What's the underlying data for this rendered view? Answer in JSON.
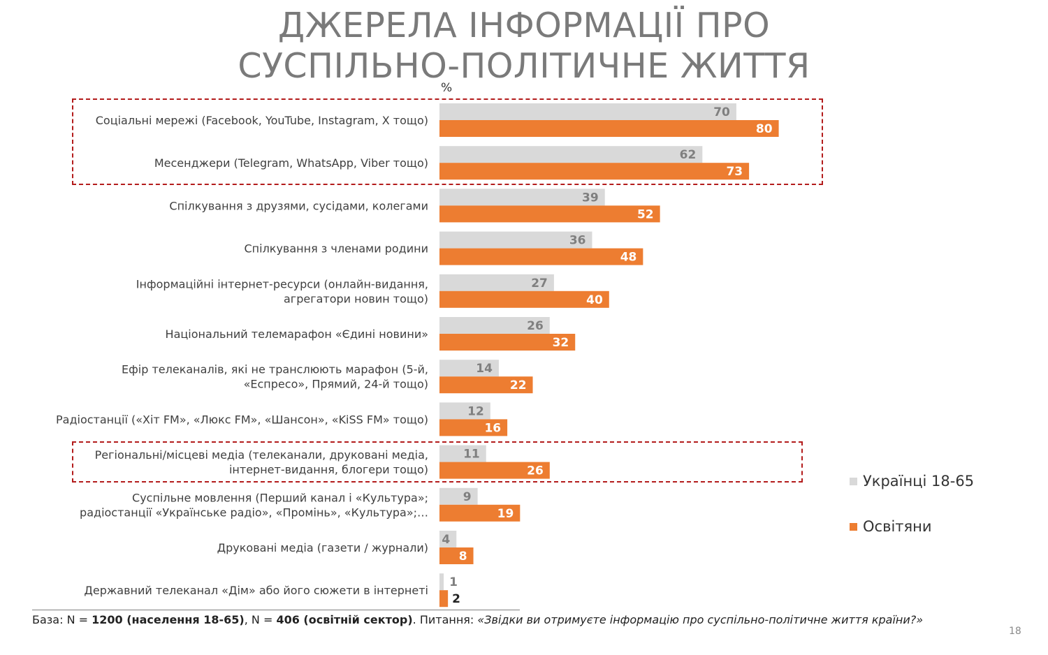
{
  "title": {
    "line1": "ДЖЕРЕЛА ІНФОРМАЦІЇ ПРО",
    "line2": "СУСПІЛЬНО-ПОЛІТИЧНЕ ЖИТТЯ"
  },
  "unit_label": "%",
  "colors": {
    "series_general": "#d9d9d9",
    "series_teachers": "#ed7d31",
    "highlight_border": "#b31b1b"
  },
  "chart_data": {
    "type": "bar",
    "orientation": "horizontal",
    "categories": [
      [
        "Соціальні мережі (Facebook, YouTube, Instagram, X тощо)"
      ],
      [
        "Месенджери (Telegram, WhatsApp, Viber тощо)"
      ],
      [
        "Спілкування з друзями, сусідами, колегами"
      ],
      [
        "Спілкування з членами родини"
      ],
      [
        "Інформаційні інтернет-ресурси (онлайн-видання,",
        "агрегатори новин тощо)"
      ],
      [
        "Національний телемарафон «Єдині новини»"
      ],
      [
        "Ефір телеканалів, які не транслюють марафон (5-й,",
        "«Еспресо», Прямий, 24-й тощо)"
      ],
      [
        "Радіостанції («Хіт FM», «Люкс FM», «Шансон», «KiSS FM» тощо)"
      ],
      [
        "Регіональні/місцеві медіа (телеканали, друковані медіа,",
        "інтернет-видання, блогери тощо)"
      ],
      [
        "Суспільне мовлення (Перший канал і «Культура»;",
        "радіостанції «Українське радіо», «Промінь», «Культура»;…"
      ],
      [
        "Друковані медіа (газети / журнали)"
      ],
      [
        "Державний телеканал «Дім» або його сюжети в інтернеті"
      ]
    ],
    "series": [
      {
        "name": "Українці 18-65",
        "values": [
          70,
          62,
          39,
          36,
          27,
          26,
          14,
          12,
          11,
          9,
          4,
          1
        ]
      },
      {
        "name": "Освітяни",
        "values": [
          80,
          73,
          52,
          48,
          40,
          32,
          22,
          16,
          26,
          19,
          8,
          2
        ]
      }
    ],
    "xlim": [
      0,
      100
    ],
    "grid": false,
    "legend_position": "right"
  },
  "footer": {
    "base_prefix": "База: N = ",
    "base_n1": "1200 (населення 18-65)",
    "base_sep": ", N = ",
    "base_n2": "406 (освітній сектор)",
    "question_prefix": ". Питання: ",
    "question": "«Звідки ви отримуєте інформацію про суспільно-політичне життя країни?»"
  },
  "page_number": "18"
}
